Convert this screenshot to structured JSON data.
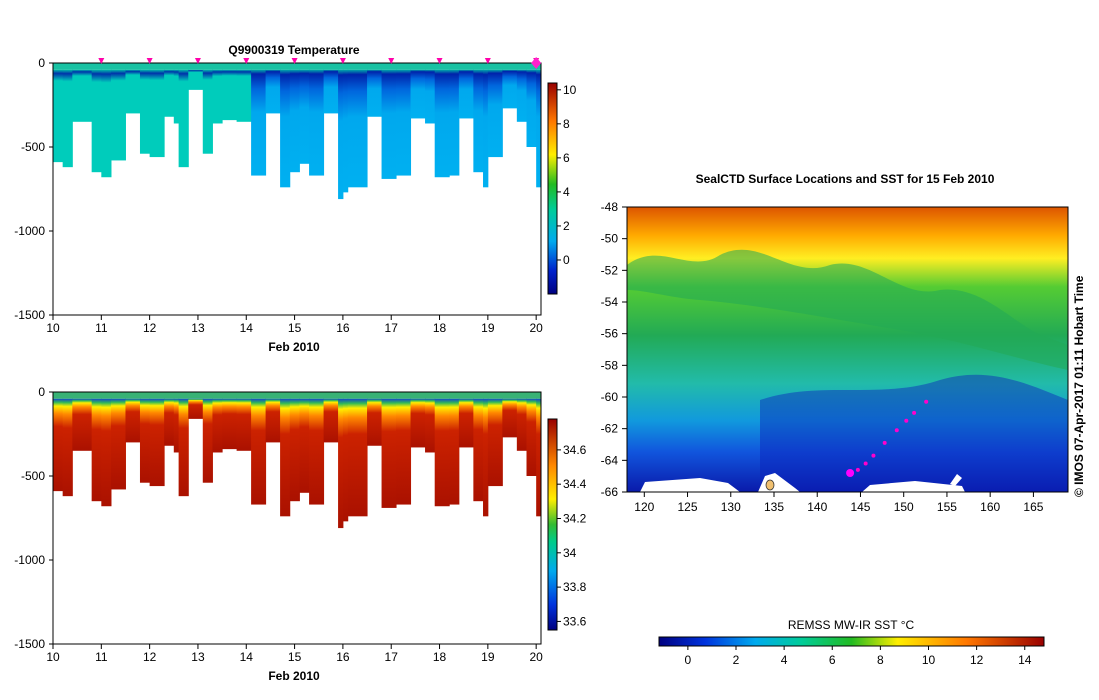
{
  "chart_data": [
    {
      "type": "heatmap",
      "variable": "temperature",
      "title": "Q9900319  Temperature",
      "xlabel": "Feb 2010",
      "x_ticks": [
        "10",
        "11",
        "12",
        "13",
        "14",
        "15",
        "16",
        "17",
        "18",
        "19",
        "20"
      ],
      "xlim": [
        10,
        20.1
      ],
      "y_ticks": [
        "0",
        "-500",
        "-1000",
        "-1500"
      ],
      "ylim": [
        -1500,
        0
      ],
      "surface_marker_days": [
        11,
        12,
        13,
        14,
        15,
        16,
        17,
        18,
        19,
        20
      ],
      "highlight_day": 20,
      "colorbar": {
        "ticks": [
          "0",
          "2",
          "4",
          "6",
          "8",
          "10"
        ],
        "range": [
          -2,
          10.4
        ]
      },
      "profiles": [
        {
          "day": 10.0,
          "bottom": -590
        },
        {
          "day": 10.2,
          "bottom": -620
        },
        {
          "day": 10.4,
          "bottom": -350
        },
        {
          "day": 10.8,
          "bottom": -650
        },
        {
          "day": 11.0,
          "bottom": -680
        },
        {
          "day": 11.2,
          "bottom": -580
        },
        {
          "day": 11.5,
          "bottom": -300
        },
        {
          "day": 11.8,
          "bottom": -540
        },
        {
          "day": 12.0,
          "bottom": -560
        },
        {
          "day": 12.3,
          "bottom": -320
        },
        {
          "day": 12.5,
          "bottom": -360
        },
        {
          "day": 12.6,
          "bottom": -620
        },
        {
          "day": 12.8,
          "bottom": -160
        },
        {
          "day": 13.1,
          "bottom": -540
        },
        {
          "day": 13.3,
          "bottom": -360
        },
        {
          "day": 13.5,
          "bottom": -340
        },
        {
          "day": 13.8,
          "bottom": -350
        },
        {
          "day": 14.1,
          "bottom": -670
        },
        {
          "day": 14.4,
          "bottom": -300
        },
        {
          "day": 14.7,
          "bottom": -740
        },
        {
          "day": 14.9,
          "bottom": -650
        },
        {
          "day": 15.1,
          "bottom": -600
        },
        {
          "day": 15.3,
          "bottom": -670
        },
        {
          "day": 15.6,
          "bottom": -300
        },
        {
          "day": 15.9,
          "bottom": -810
        },
        {
          "day": 16.0,
          "bottom": -770
        },
        {
          "day": 16.1,
          "bottom": -740
        },
        {
          "day": 16.5,
          "bottom": -320
        },
        {
          "day": 16.8,
          "bottom": -690
        },
        {
          "day": 17.1,
          "bottom": -670
        },
        {
          "day": 17.4,
          "bottom": -330
        },
        {
          "day": 17.7,
          "bottom": -360
        },
        {
          "day": 17.9,
          "bottom": -680
        },
        {
          "day": 18.2,
          "bottom": -670
        },
        {
          "day": 18.4,
          "bottom": -330
        },
        {
          "day": 18.7,
          "bottom": -650
        },
        {
          "day": 18.9,
          "bottom": -740
        },
        {
          "day": 19.0,
          "bottom": -560
        },
        {
          "day": 19.3,
          "bottom": -270
        },
        {
          "day": 19.6,
          "bottom": -350
        },
        {
          "day": 19.8,
          "bottom": -500
        },
        {
          "day": 20.0,
          "bottom": -740
        }
      ]
    },
    {
      "type": "heatmap",
      "variable": "salinity",
      "xlabel": "Feb 2010",
      "x_ticks": [
        "10",
        "11",
        "12",
        "13",
        "14",
        "15",
        "16",
        "17",
        "18",
        "19",
        "20"
      ],
      "xlim": [
        10,
        20.1
      ],
      "y_ticks": [
        "0",
        "-500",
        "-1000",
        "-1500"
      ],
      "ylim": [
        -1500,
        0
      ],
      "colorbar": {
        "ticks": [
          "33.6",
          "33.8",
          "34",
          "34.2",
          "34.4",
          "34.6"
        ],
        "range": [
          33.55,
          34.78
        ]
      }
    },
    {
      "type": "heatmap",
      "variable": "sea_surface_temperature_map",
      "title": "SealCTD Surface Locations and SST for 15 Feb 2010",
      "x_ticks": [
        "120",
        "125",
        "130",
        "135",
        "140",
        "145",
        "150",
        "155",
        "160",
        "165"
      ],
      "xlim": [
        118,
        169
      ],
      "y_ticks": [
        "-48",
        "-50",
        "-52",
        "-54",
        "-56",
        "-58",
        "-60",
        "-62",
        "-64",
        "-66"
      ],
      "ylim": [
        -66,
        -48
      ],
      "seal_track": [
        {
          "lon": 143.8,
          "lat": -64.8
        },
        {
          "lon": 144.7,
          "lat": -64.6
        },
        {
          "lon": 145.6,
          "lat": -64.2
        },
        {
          "lon": 146.5,
          "lat": -63.7
        },
        {
          "lon": 147.8,
          "lat": -62.9
        },
        {
          "lon": 149.2,
          "lat": -62.1
        },
        {
          "lon": 150.3,
          "lat": -61.5
        },
        {
          "lon": 151.2,
          "lat": -61.0
        },
        {
          "lon": 152.6,
          "lat": -60.3
        }
      ],
      "current_location": {
        "lon": 143.8,
        "lat": -64.8
      },
      "colorbar": {
        "label": "REMSS MW-IR SST °C",
        "ticks": [
          "0",
          "2",
          "4",
          "6",
          "8",
          "10",
          "12",
          "14"
        ],
        "range": [
          -1.2,
          14.8
        ]
      },
      "credit": "© IMOS 07-Apr-2017 01:11 Hobart Time"
    }
  ]
}
